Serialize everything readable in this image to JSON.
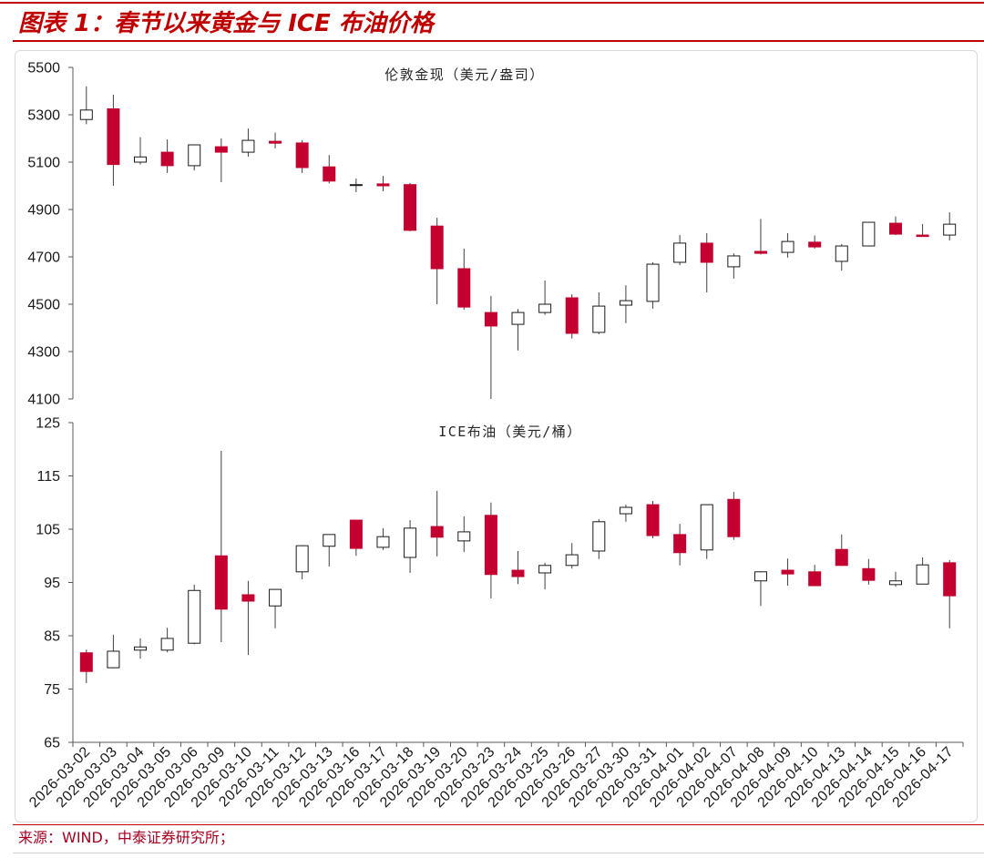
{
  "header": {
    "title": "图表 1：春节以来黄金与 ICE 布油价格"
  },
  "source": "来源：WIND，中泰证券研究所；",
  "colors": {
    "accent": "#C00000",
    "down": "#C3002F",
    "up_fill": "#FFFFFF",
    "up_stroke": "#1A1A1A",
    "wick": "#404040",
    "axis": "#595959"
  },
  "chart_data": {
    "type": "candlestick",
    "grid": false,
    "legend": false,
    "categories": [
      "2026-03-02",
      "2026-03-03",
      "2026-03-04",
      "2026-03-05",
      "2026-03-06",
      "2026-03-09",
      "2026-03-10",
      "2026-03-11",
      "2026-03-12",
      "2026-03-13",
      "2026-03-16",
      "2026-03-17",
      "2026-03-18",
      "2026-03-19",
      "2026-03-20",
      "2026-03-23",
      "2026-03-24",
      "2026-03-25",
      "2026-03-26",
      "2026-03-27",
      "2026-03-30",
      "2026-03-31",
      "2026-04-01",
      "2026-04-02",
      "2026-04-07",
      "2026-04-08",
      "2026-04-09",
      "2026-04-10",
      "2026-04-13",
      "2026-04-14",
      "2026-04-15",
      "2026-04-16",
      "2026-04-17"
    ],
    "panels": [
      {
        "title": "伦敦金现（美元/盎司）",
        "ylim": [
          4100,
          5500
        ],
        "yticks": [
          4100,
          4300,
          4500,
          4700,
          4900,
          5100,
          5300,
          5500
        ],
        "open": [
          5280,
          5325,
          5100,
          5142,
          5085,
          5165,
          5142,
          5188,
          5181,
          5080,
          5002,
          5008,
          5005,
          4830,
          4650,
          4465,
          4415,
          4465,
          4527,
          4381,
          4496,
          4512,
          4677,
          4758,
          4658,
          4723,
          4719,
          4762,
          4681,
          4746,
          4842,
          4792,
          4792
        ],
        "high": [
          5420,
          5385,
          5205,
          5196,
          5175,
          5200,
          5242,
          5225,
          5192,
          5130,
          5031,
          5042,
          5012,
          4865,
          4735,
          4535,
          4480,
          4600,
          4542,
          4550,
          4580,
          4677,
          4792,
          4800,
          4715,
          4860,
          4800,
          4790,
          4754,
          4846,
          4870,
          4838,
          4888
        ],
        "low": [
          5260,
          5000,
          5090,
          5054,
          5065,
          5015,
          5123,
          5158,
          5054,
          5010,
          4973,
          4977,
          4808,
          4500,
          4477,
          4100,
          4305,
          4455,
          4355,
          4373,
          4420,
          4481,
          4665,
          4550,
          4608,
          4710,
          4697,
          4735,
          4642,
          4746,
          4792,
          4785,
          4769
        ],
        "close": [
          5320,
          5090,
          5122,
          5085,
          5173,
          5142,
          5192,
          5180,
          5077,
          5020,
          5005,
          5000,
          4812,
          4650,
          4488,
          4408,
          4465,
          4500,
          4377,
          4492,
          4515,
          4669,
          4758,
          4677,
          4704,
          4715,
          4765,
          4742,
          4746,
          4846,
          4796,
          4786,
          4838
        ]
      },
      {
        "title": "ICE布油（美元/桶）",
        "ylim": [
          65,
          125
        ],
        "yticks": [
          65,
          75,
          85,
          95,
          105,
          115,
          125
        ],
        "open": [
          81.8,
          79.0,
          82.3,
          82.3,
          83.6,
          100.0,
          92.7,
          90.6,
          97.0,
          101.8,
          106.7,
          101.6,
          99.7,
          105.5,
          102.8,
          107.6,
          97.3,
          96.8,
          98.2,
          100.9,
          107.9,
          109.6,
          104.0,
          101.1,
          110.6,
          95.3,
          97.3,
          97.0,
          101.2,
          97.6,
          94.6,
          94.7,
          98.7
        ],
        "high": [
          82.4,
          85.2,
          84.5,
          86.5,
          94.6,
          119.7,
          95.3,
          93.8,
          102.0,
          104.0,
          106.8,
          105.2,
          106.7,
          112.2,
          107.4,
          110.0,
          100.9,
          98.7,
          102.4,
          106.9,
          109.6,
          110.3,
          106.0,
          109.7,
          112.0,
          97.1,
          99.5,
          98.3,
          104.0,
          99.4,
          97.0,
          99.7,
          99.2
        ],
        "low": [
          76.1,
          78.9,
          80.7,
          81.9,
          83.4,
          83.8,
          81.4,
          86.4,
          95.6,
          98.0,
          100.0,
          101.1,
          96.8,
          99.9,
          100.7,
          92.0,
          94.7,
          93.7,
          97.6,
          99.4,
          106.4,
          103.3,
          98.2,
          99.4,
          103.0,
          90.6,
          94.4,
          94.3,
          98.1,
          94.6,
          94.2,
          94.7,
          86.4
        ],
        "close": [
          78.3,
          82.1,
          82.9,
          84.5,
          93.5,
          90.0,
          91.5,
          93.7,
          101.9,
          104.0,
          101.4,
          103.6,
          105.2,
          103.5,
          104.5,
          96.5,
          96.1,
          98.2,
          100.2,
          106.4,
          109.1,
          103.8,
          100.6,
          109.6,
          103.6,
          97.0,
          96.6,
          94.4,
          98.2,
          95.4,
          95.3,
          98.3,
          92.5
        ]
      }
    ]
  }
}
